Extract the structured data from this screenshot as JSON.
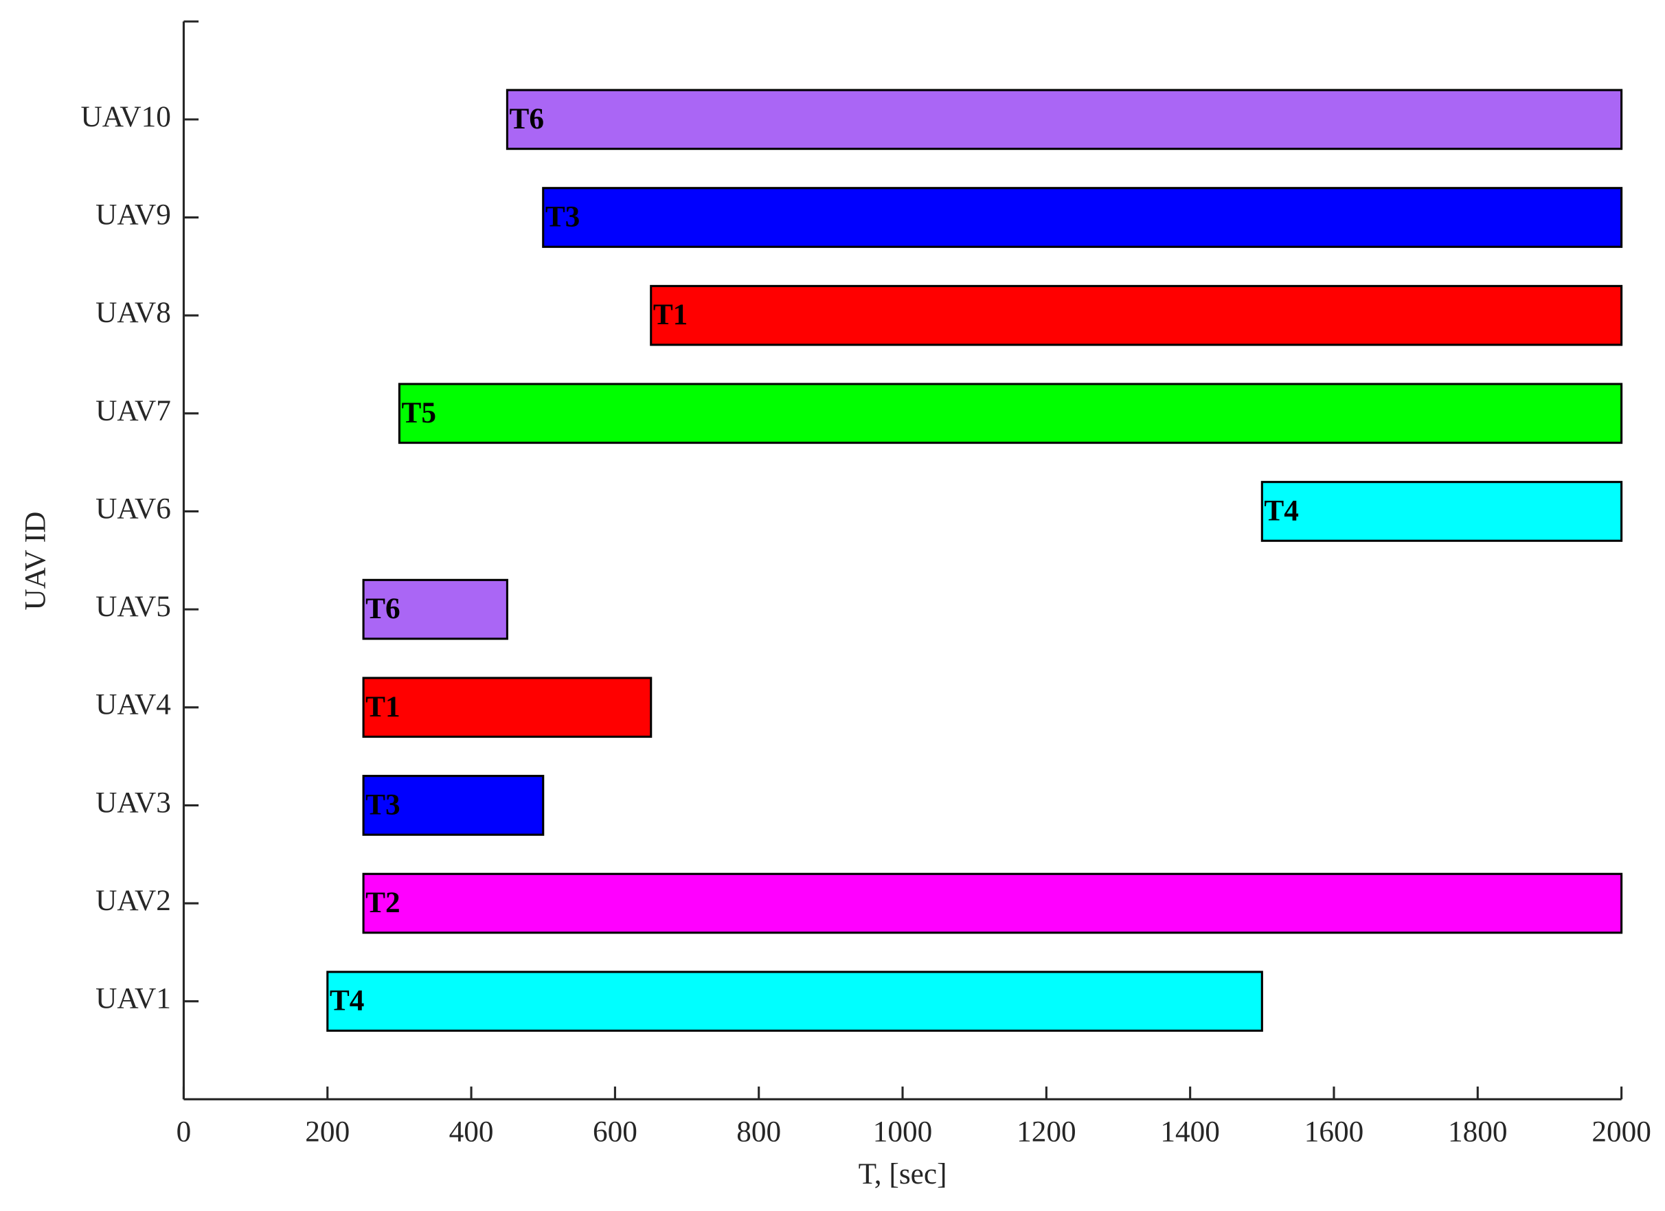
{
  "chart_data": {
    "type": "gantt",
    "xlabel": "T, [sec]",
    "ylabel": "UAV ID",
    "categories": [
      "UAV1",
      "UAV2",
      "UAV3",
      "UAV4",
      "UAV5",
      "UAV6",
      "UAV7",
      "UAV8",
      "UAV9",
      "UAV10"
    ],
    "starts": [
      200,
      250,
      250,
      250,
      250,
      1500,
      300,
      650,
      500,
      450
    ],
    "ends": [
      1500,
      2000,
      500,
      650,
      450,
      2000,
      2000,
      2000,
      2000,
      2000
    ],
    "labels": [
      "T4",
      "T2",
      "T3",
      "T1",
      "T6",
      "T4",
      "T5",
      "T1",
      "T3",
      "T6"
    ],
    "colors": [
      "#00ffff",
      "#ff00ff",
      "#0000ff",
      "#ff0000",
      "#aa66f5",
      "#00ffff",
      "#00ff00",
      "#ff0000",
      "#0000ff",
      "#aa66f5"
    ],
    "xlim": [
      0,
      2000
    ],
    "xticks": [
      0,
      200,
      400,
      600,
      800,
      1000,
      1200,
      1400,
      1600,
      1800,
      2000
    ]
  }
}
